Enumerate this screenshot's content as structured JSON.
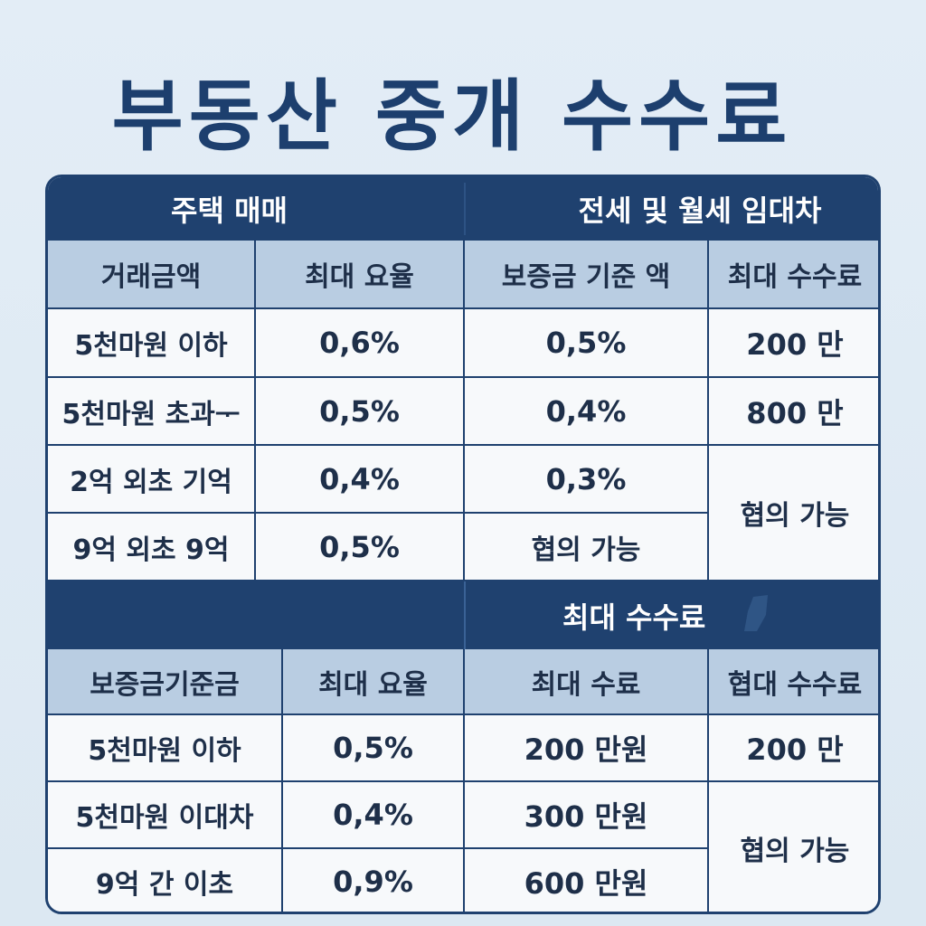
{
  "title": "부동산 중개 수수료",
  "sale": {
    "header": "주택 매매",
    "columns": [
      "거래금액",
      "최대 요율"
    ],
    "rows": [
      {
        "amount": "5천마원 이하",
        "rate": "0,6%"
      },
      {
        "amount": "5천마원 초과ᅮ",
        "rate": "0,5%"
      },
      {
        "amount": "2억 외초 기억",
        "rate": "0,4%"
      },
      {
        "amount": "9억 외초 9억",
        "rate": "0,5%"
      }
    ]
  },
  "lease": {
    "header": "전세 및 월세 임대차",
    "columns": [
      "보증금 기준 액",
      "최대 수수료"
    ],
    "rows": [
      {
        "deposit_rate": "0,5%",
        "max_fee": "200 만"
      },
      {
        "deposit_rate": "0,4%",
        "max_fee": "800 만"
      },
      {
        "deposit_rate": "0,3%"
      },
      {
        "deposit_rate": "협의 가능"
      }
    ],
    "merged_fee": "협의 가능"
  },
  "bottom": {
    "header_left": "",
    "header_right": "최대 수수료",
    "columns": [
      "보증금기준금",
      "최대 요율",
      "최대 수료",
      "협대 수수료"
    ],
    "rows": [
      {
        "deposit": "5천마원 이하",
        "rate": "0,5%",
        "fee": "200 만원",
        "agreed": "200 만"
      },
      {
        "deposit": "5천마원 이대차",
        "rate": "0,4%",
        "fee": "300 만원"
      },
      {
        "deposit": "9억 간 이초",
        "rate": "0,9%",
        "fee": "600 만원"
      }
    ],
    "merged_agreed": "협의 가능"
  },
  "colors": {
    "header_bg": "#1f416f",
    "subheader_bg": "#b9cde2",
    "cell_bg": "#f7f9fb",
    "title": "#1d3f6e"
  }
}
